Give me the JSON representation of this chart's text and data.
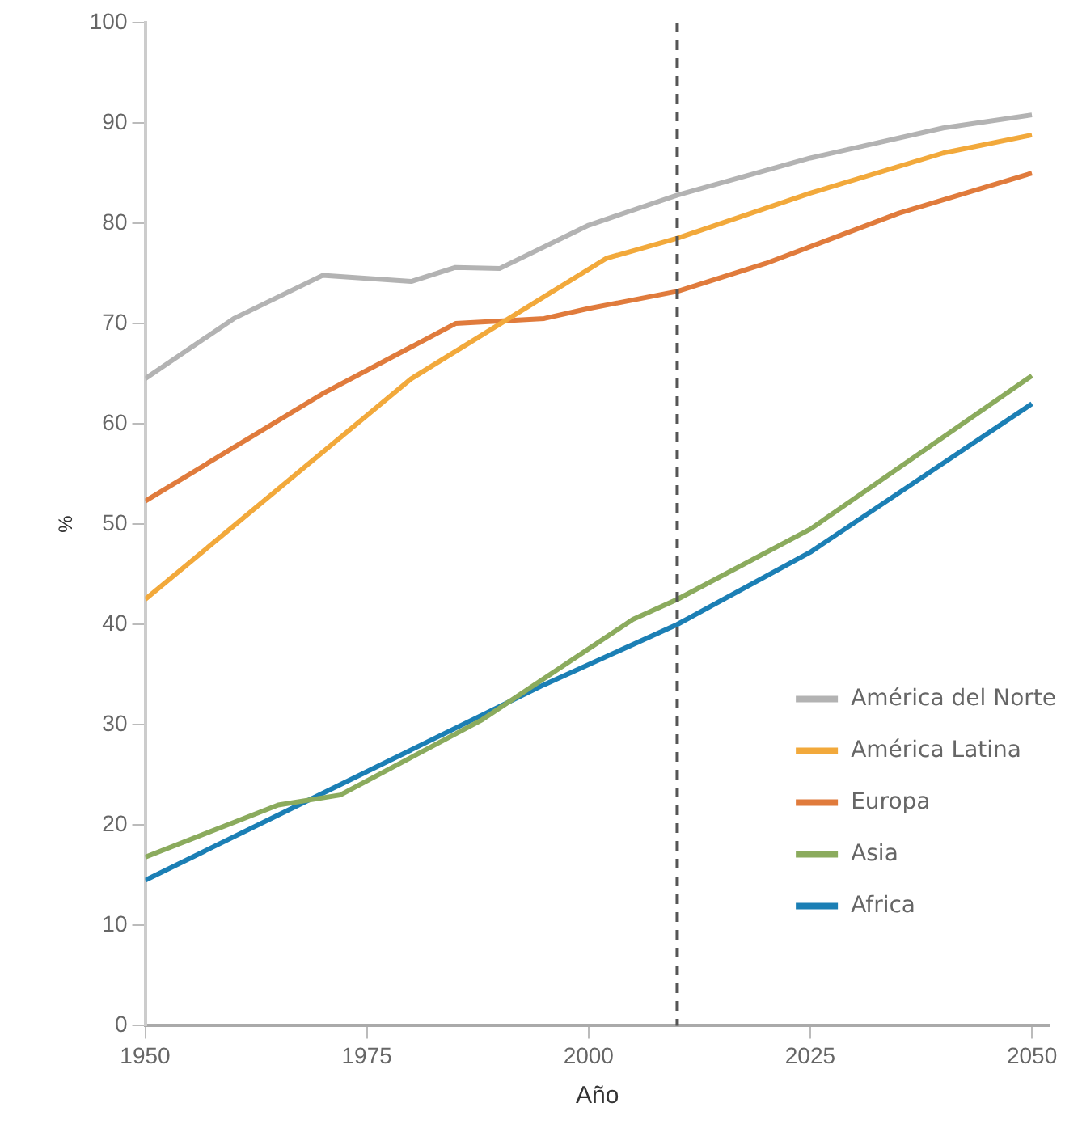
{
  "chart_data": {
    "type": "line",
    "xlabel": "Año",
    "ylabel": "%",
    "xlim": [
      1950,
      2052
    ],
    "xticks": [
      1950,
      1975,
      2000,
      2025,
      2050
    ],
    "ylim": [
      0,
      100
    ],
    "yticks": [
      0,
      10,
      20,
      30,
      40,
      50,
      60,
      70,
      80,
      90,
      100
    ],
    "grid": false,
    "legend": "bottom right",
    "marker": "none",
    "line_style": "solid",
    "ref_lines": [
      {
        "axis": "x",
        "value": 2010,
        "color": "#555555",
        "line_style": "dashed"
      }
    ],
    "series": [
      {
        "name": "América del Norte",
        "color": "#b3b3b3",
        "x": [
          1950,
          1960,
          1970,
          1980,
          1985,
          1990,
          2000,
          2010,
          2025,
          2040,
          2050
        ],
        "values": [
          64.5,
          70.5,
          74.8,
          74.2,
          75.6,
          75.5,
          79.8,
          82.8,
          86.5,
          89.5,
          90.8
        ]
      },
      {
        "name": "América Latina",
        "color": "#f2a93b",
        "x": [
          1950,
          1980,
          2002,
          2010,
          2025,
          2040,
          2050
        ],
        "values": [
          42.5,
          64.5,
          76.5,
          78.5,
          83,
          87,
          88.8
        ]
      },
      {
        "name": "Europa",
        "color": "#e07b3c",
        "x": [
          1950,
          1970,
          1985,
          1995,
          2000,
          2010,
          2020,
          2035,
          2050
        ],
        "values": [
          52.3,
          63,
          70,
          70.5,
          71.5,
          73.2,
          76,
          81,
          85
        ]
      },
      {
        "name": "Asia",
        "color": "#8bab5d",
        "x": [
          1950,
          1965,
          1972,
          1988,
          2005,
          2010,
          2025,
          2050
        ],
        "values": [
          16.8,
          22,
          23,
          30.5,
          40.5,
          42.5,
          49.5,
          64.8
        ]
      },
      {
        "name": "Africa",
        "color": "#1b7fb5",
        "x": [
          1950,
          1995,
          2010,
          2025,
          2050
        ],
        "values": [
          14.5,
          34,
          40,
          47.2,
          62
        ]
      }
    ]
  }
}
